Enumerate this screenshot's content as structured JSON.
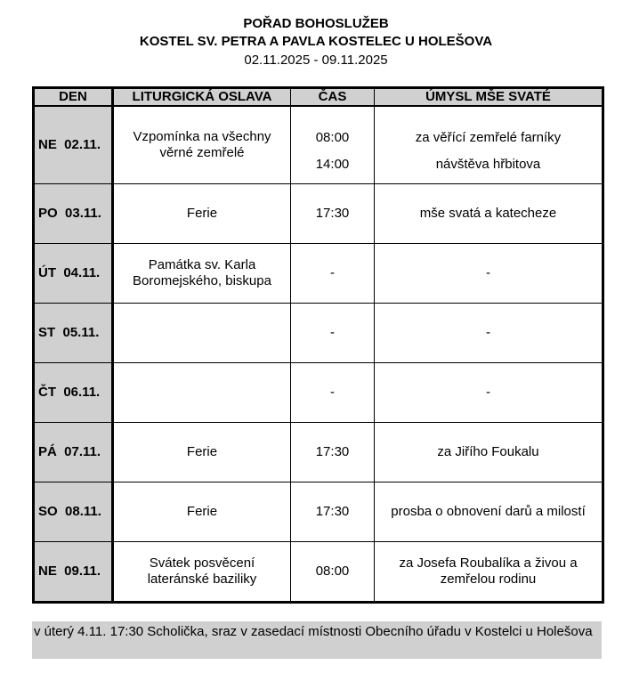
{
  "header": {
    "line1": "POŘAD BOHOSLUŽEB",
    "line2": "KOSTEL SV. PETRA A PAVLA KOSTELEC U HOLEŠOVA",
    "dates": "02.11.2025 - 09.11.2025"
  },
  "columns": [
    "DEN",
    "LITURGICKÁ OSLAVA",
    "ČAS",
    "ÚMYSL MŠE SVATÉ"
  ],
  "rows": [
    {
      "day": "NE  02.11.",
      "celebration": "Vzpomínka na všechny věrné zemřelé",
      "times": [
        "08:00",
        "14:00"
      ],
      "intentions": [
        "za věřící zemřelé farníky",
        "návštěva hřbitova"
      ]
    },
    {
      "day": "PO  03.11.",
      "celebration": "Ferie",
      "time": "17:30",
      "intention": "mše svatá a katecheze"
    },
    {
      "day": "ÚT  04.11.",
      "celebration": "Památka sv. Karla Boromejského, biskupa",
      "time": "-",
      "intention": "-"
    },
    {
      "day": "ST  05.11.",
      "celebration": "",
      "time": "-",
      "intention": "-"
    },
    {
      "day": "ČT  06.11.",
      "celebration": "",
      "time": "-",
      "intention": "-"
    },
    {
      "day": "PÁ  07.11.",
      "celebration": "Ferie",
      "time": "17:30",
      "intention": "za Jiřího Foukalu"
    },
    {
      "day": "SO  08.11.",
      "celebration": "Ferie",
      "time": "17:30",
      "intention": "prosba o obnovení darů a milostí"
    },
    {
      "day": "NE  09.11.",
      "celebration": "Svátek posvěcení lateránské baziliky",
      "time": "08:00",
      "intention": "za Josefa Roubalíka a živou a zemřelou rodinu"
    }
  ],
  "note": "v úterý 4.11. 17:30 Scholička, sraz v zasedací místnosti Obecního úřadu v Kostelci u Holešova"
}
